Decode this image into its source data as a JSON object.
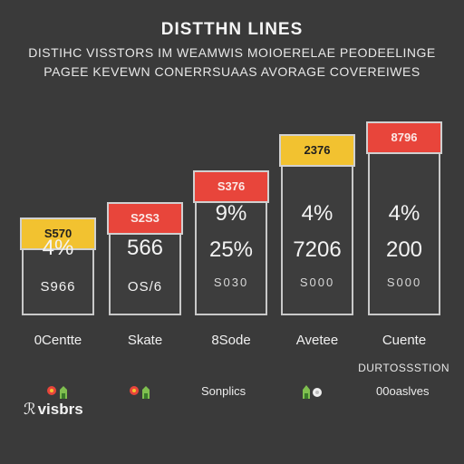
{
  "header": {
    "title": "DISTTHN LINES",
    "subtitle_line1": "DISTIHC VISSTORS IM WEAMWIS MOIOERELAE PEODEELINGE",
    "subtitle_line2": "PAGEE KEVEWN CONERRSUAAS AVORAGE COVEREIWES"
  },
  "chart_data": {
    "type": "bar",
    "title": "DISTTHN LINES",
    "categories": [
      "0Centte",
      "Skate",
      "8Sode",
      "Avetee",
      "Cuente"
    ],
    "values": [
      4,
      4.6,
      5.9,
      7.4,
      7.9
    ],
    "cap_labels": [
      "S570",
      "S2S3",
      "S376",
      "2376",
      "8796"
    ],
    "bar_labels": [
      [
        "4%",
        "S966"
      ],
      [
        "566",
        "OS/6"
      ],
      [
        "9%",
        "25%",
        "S030"
      ],
      [
        "4%",
        "7206",
        "S000"
      ],
      [
        "4%",
        "200",
        "S000"
      ]
    ],
    "cap_colors": [
      "#f2c230",
      "#e8453b",
      "#e8453b",
      "#f2c230",
      "#e8453b"
    ],
    "grid": false
  },
  "legend": {
    "note": "DURTOSSSTION",
    "items": [
      "",
      "",
      "Sonplics",
      "",
      "00oaslves"
    ],
    "icons": [
      "red-flower-icon",
      "red-flower-icon",
      "",
      "green-leaf-icon",
      ""
    ]
  },
  "footer": {
    "glyph": "ℛ",
    "text": "visbrs"
  },
  "colors": {
    "background": "#3a3a3a",
    "yellow": "#f2c230",
    "red": "#e8453b",
    "green": "#7fbf4f"
  }
}
